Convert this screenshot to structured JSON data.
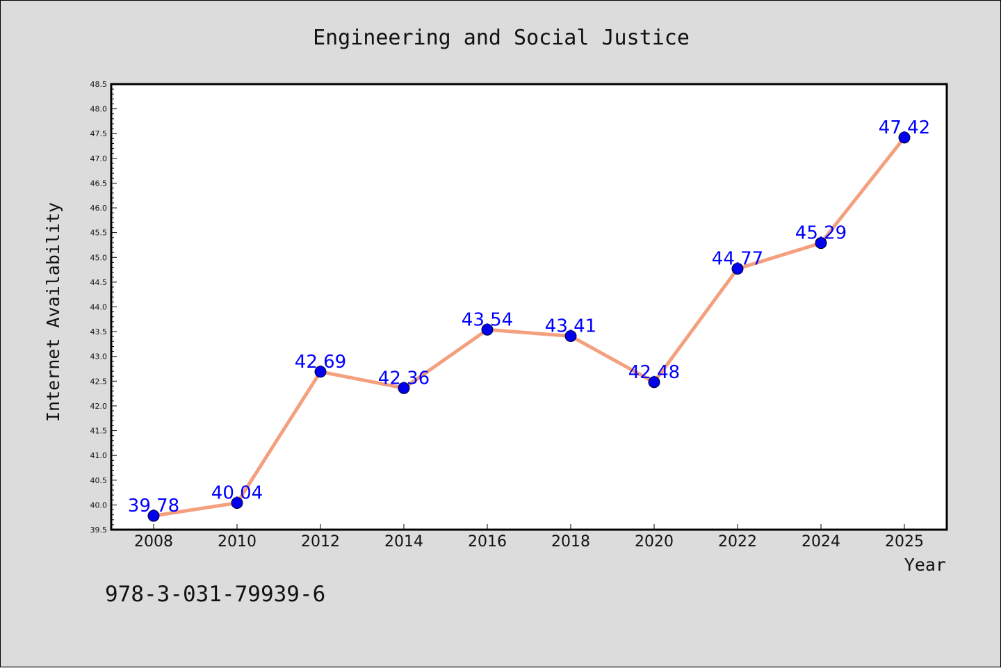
{
  "chart_data": {
    "type": "line",
    "title": "Engineering and Social Justice",
    "xlabel": "Year",
    "ylabel": "Internet Availability",
    "categories": [
      "2008",
      "2010",
      "2012",
      "2014",
      "2016",
      "2018",
      "2020",
      "2022",
      "2024",
      "2025"
    ],
    "series": [
      {
        "values": [
          39.78,
          40.04,
          42.69,
          42.36,
          43.54,
          43.41,
          42.48,
          44.77,
          45.29,
          47.42
        ]
      }
    ],
    "data_labels": [
      "39.78",
      "40.04",
      "42.69",
      "42.36",
      "43.54",
      "43.41",
      "42.48",
      "44.77",
      "45.29",
      "47.42"
    ],
    "ylim": [
      39.5,
      48.5
    ],
    "yticks": [
      "39.5",
      "40.0",
      "40.5",
      "41.0",
      "41.5",
      "42.0",
      "42.5",
      "43.0",
      "43.5",
      "44.0",
      "44.5",
      "45.0",
      "45.5",
      "46.0",
      "46.5",
      "47.0",
      "47.5",
      "48.0",
      "48.5"
    ],
    "grid": false,
    "colors": {
      "line": "#f4a07e",
      "marker": "#0000ee",
      "label": "#0000ff",
      "plot_bg": "#ffffff",
      "figure_bg": "#dcdcdc"
    }
  },
  "footnote": "978-3-031-79939-6"
}
